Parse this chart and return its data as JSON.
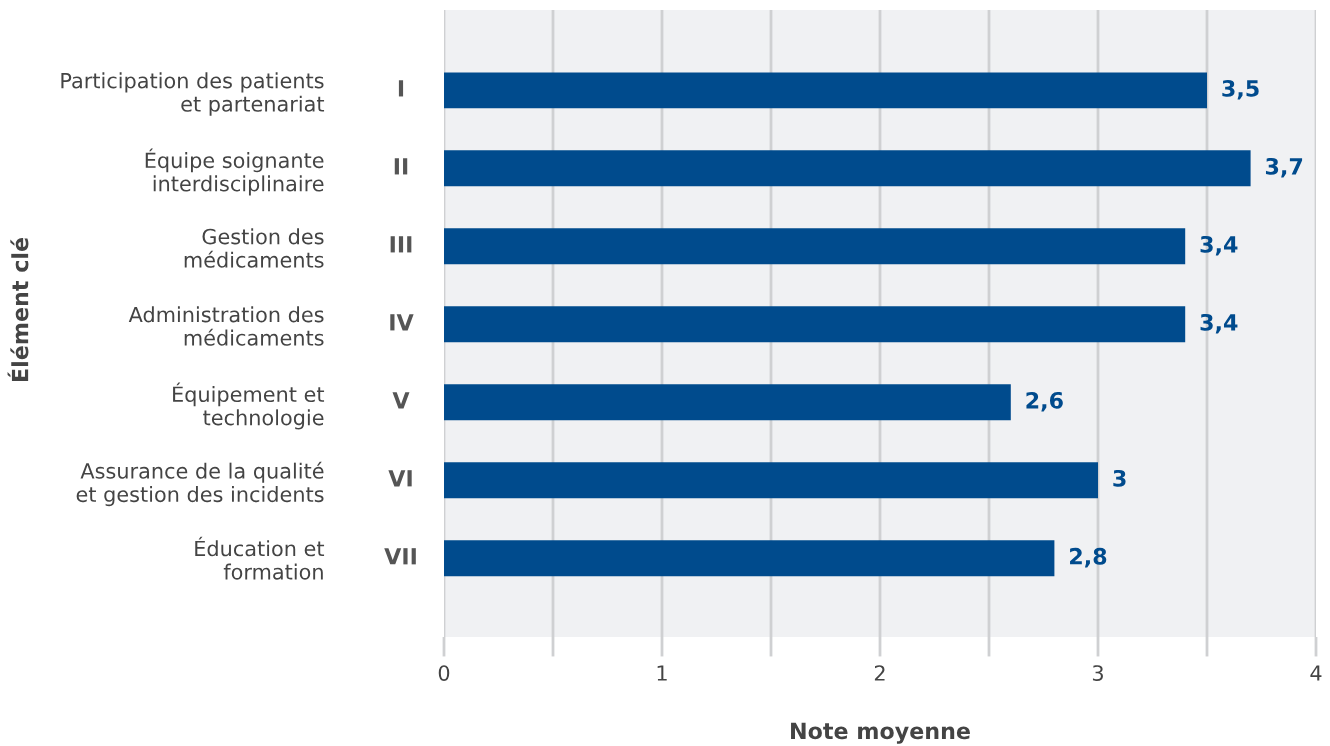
{
  "chart_data": {
    "type": "bar",
    "orientation": "horizontal",
    "categories": [
      "Participation des patients\net partenariat",
      "Équipe soignante\ninterdisciplinaire",
      "Gestion des\nmédicaments",
      "Administration des\nmédicaments",
      "Équipement et\ntechnologie",
      "Assurance de la qualité\net gestion des incidents",
      "Éducation et\nformation"
    ],
    "values": [
      3.5,
      3.7,
      3.4,
      3.4,
      2.6,
      3,
      2.8
    ],
    "value_labels": [
      "3,5",
      "3,7",
      "3,4",
      "3,4",
      "2,6",
      "3",
      "2,8"
    ],
    "color": "#004b8d",
    "annotations": [
      "I",
      "II",
      "III",
      "IV",
      "V",
      "VI",
      "VII"
    ],
    "xlabel": "Note moyenne",
    "ylabel": "Élément clé",
    "xlim": [
      0,
      4
    ],
    "xticks": [
      0,
      {
        "value": 0.5,
        "label": null
      },
      1,
      {
        "value": 1.5,
        "label": null
      },
      2,
      {
        "value": 2.5,
        "label": null
      },
      3,
      {
        "value": 3.5,
        "label": null
      },
      4
    ],
    "grid": "x"
  }
}
